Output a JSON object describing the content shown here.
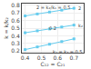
{
  "chart_data": {
    "type": "line",
    "xlabel": "C₁₂ = C₂₁",
    "ylabel": "k = k/k₂",
    "x": [
      0.4,
      0.475,
      0.55,
      0.625,
      0.7
    ],
    "series": [
      {
        "color": "#66ccee",
        "marker": "square",
        "values": [
          0.66,
          0.685,
          0.71,
          0.735,
          0.76
        ]
      },
      {
        "color": "#66ccee",
        "marker": "square",
        "values": [
          0.44,
          0.465,
          0.49,
          0.515,
          0.54
        ]
      },
      {
        "color": "#66ccee",
        "marker": "square",
        "values": [
          0.22,
          0.255,
          0.29,
          0.325,
          0.36
        ]
      }
    ],
    "xlim": [
      0.38,
      0.76
    ],
    "ylim": [
      0.18,
      0.82
    ],
    "xticks": [
      0.4,
      0.5,
      0.6,
      0.7
    ],
    "yticks": [
      0.2,
      0.3,
      0.4,
      0.5,
      0.6,
      0.7,
      0.8
    ],
    "grid": true,
    "annotations": [
      {
        "text": "2 = k₂/k₁ = 0.5",
        "x": 0.46,
        "y": 0.775
      },
      {
        "text": "0.2",
        "x": 0.535,
        "y": 0.505
      },
      {
        "text": "2",
        "x": 0.715,
        "y": 0.76
      },
      {
        "text": "k₂",
        "x": 0.715,
        "y": 0.54
      },
      {
        "text": "k₁ = k₂ = 0.5",
        "x": 0.56,
        "y": 0.195
      }
    ]
  }
}
